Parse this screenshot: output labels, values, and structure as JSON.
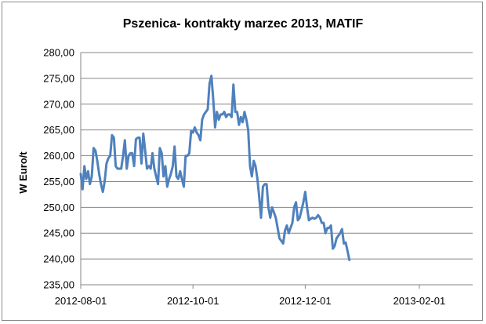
{
  "chart_data": {
    "type": "line",
    "title": "Pszenica- kontrakty marzec 2013, MATIF",
    "xlabel": "",
    "ylabel": "W Euro/t",
    "ylim": [
      235,
      280
    ],
    "y_ticks": [
      "235,00",
      "240,00",
      "245,00",
      "250,00",
      "255,00",
      "260,00",
      "265,00",
      "270,00",
      "275,00",
      "280,00"
    ],
    "x_ticks": [
      "2012-08-01",
      "2012-10-01",
      "2012-12-01",
      "2013-02-01"
    ],
    "x_tick_days": [
      0,
      61,
      122,
      184
    ],
    "x_range_days": [
      0,
      213
    ],
    "grid": "horizontal",
    "legend": "none",
    "color": "#4F81BD",
    "series": [
      {
        "values": [
          [
            0,
            256.5
          ],
          [
            1,
            253.5
          ],
          [
            2,
            258
          ],
          [
            3,
            255.5
          ],
          [
            4,
            257
          ],
          [
            5,
            254.5
          ],
          [
            6,
            256
          ],
          [
            7,
            261.5
          ],
          [
            8,
            261
          ],
          [
            9,
            259
          ],
          [
            10,
            256.5
          ],
          [
            11,
            254.5
          ],
          [
            12,
            253
          ],
          [
            13,
            255
          ],
          [
            14,
            258.5
          ],
          [
            15,
            259.5
          ],
          [
            16,
            260
          ],
          [
            17,
            264
          ],
          [
            18,
            263.5
          ],
          [
            19,
            258
          ],
          [
            20,
            257.5
          ],
          [
            21,
            257.5
          ],
          [
            22,
            257.5
          ],
          [
            23,
            260
          ],
          [
            24,
            263
          ],
          [
            25,
            257.5
          ],
          [
            26,
            260
          ],
          [
            27,
            260.5
          ],
          [
            28,
            260.5
          ],
          [
            29,
            258
          ],
          [
            30,
            263.2
          ],
          [
            31,
            263.5
          ],
          [
            32,
            263.5
          ],
          [
            33,
            258.5
          ],
          [
            34,
            264.3
          ],
          [
            35,
            261
          ],
          [
            36,
            257.5
          ],
          [
            37,
            258
          ],
          [
            38,
            257.5
          ],
          [
            39,
            260.5
          ],
          [
            40,
            257.5
          ],
          [
            41,
            256
          ],
          [
            42,
            254.5
          ],
          [
            43,
            261.5
          ],
          [
            44,
            260.5
          ],
          [
            45,
            256
          ],
          [
            46,
            258
          ],
          [
            47,
            254
          ],
          [
            48,
            255.5
          ],
          [
            49,
            256.5
          ],
          [
            50,
            258
          ],
          [
            51,
            261.8
          ],
          [
            52,
            256
          ],
          [
            53,
            255.5
          ],
          [
            54,
            257
          ],
          [
            55,
            255.5
          ],
          [
            56,
            254
          ],
          [
            57,
            260
          ],
          [
            58,
            260
          ],
          [
            59,
            260.5
          ],
          [
            60,
            264.8
          ],
          [
            61,
            264.5
          ],
          [
            62,
            265.5
          ],
          [
            63,
            264.5
          ],
          [
            64,
            264
          ],
          [
            65,
            263
          ],
          [
            66,
            267
          ],
          [
            67,
            268
          ],
          [
            68,
            268.5
          ],
          [
            69,
            269
          ],
          [
            70,
            274
          ],
          [
            71,
            275.5
          ],
          [
            72,
            271
          ],
          [
            73,
            265.5
          ],
          [
            74,
            268.5
          ],
          [
            75,
            267
          ],
          [
            76,
            268
          ],
          [
            77,
            268
          ],
          [
            78,
            268.5
          ],
          [
            79,
            267.5
          ],
          [
            80,
            268
          ],
          [
            81,
            268
          ],
          [
            82,
            267.5
          ],
          [
            83,
            273.8
          ],
          [
            84,
            268.5
          ],
          [
            85,
            268.5
          ],
          [
            86,
            266
          ],
          [
            87,
            267.5
          ],
          [
            88,
            266.5
          ],
          [
            89,
            268.5
          ],
          [
            90,
            267
          ],
          [
            91,
            265
          ],
          [
            92,
            258
          ],
          [
            93,
            256
          ],
          [
            94,
            259
          ],
          [
            95,
            258
          ],
          [
            96,
            255.5
          ],
          [
            97,
            252
          ],
          [
            98,
            248
          ],
          [
            99,
            254
          ],
          [
            100,
            254.5
          ],
          [
            101,
            254.5
          ],
          [
            102,
            250
          ],
          [
            103,
            248
          ],
          [
            104,
            250
          ],
          [
            105,
            249
          ],
          [
            106,
            248
          ],
          [
            107,
            246
          ],
          [
            108,
            244
          ],
          [
            109,
            243.5
          ],
          [
            110,
            243
          ],
          [
            111,
            245.5
          ],
          [
            112,
            246.5
          ],
          [
            113,
            245
          ],
          [
            114,
            246
          ],
          [
            115,
            247
          ],
          [
            116,
            250
          ],
          [
            117,
            251
          ],
          [
            118,
            247.5
          ],
          [
            119,
            248
          ],
          [
            120,
            249.5
          ],
          [
            121,
            251
          ],
          [
            122,
            253
          ],
          [
            123,
            250
          ],
          [
            124,
            247.5
          ],
          [
            125,
            247.8
          ],
          [
            126,
            248
          ],
          [
            127,
            247.8
          ],
          [
            128,
            248
          ],
          [
            129,
            248.5
          ],
          [
            130,
            248
          ],
          [
            131,
            247
          ],
          [
            132,
            247
          ],
          [
            133,
            245
          ],
          [
            134,
            246
          ],
          [
            135,
            246
          ],
          [
            136,
            246.5
          ],
          [
            137,
            242
          ],
          [
            138,
            242.5
          ],
          [
            139,
            244
          ],
          [
            140,
            244.5
          ],
          [
            141,
            245
          ],
          [
            142,
            245.8
          ],
          [
            143,
            243
          ],
          [
            144,
            243.2
          ],
          [
            145,
            241.5
          ],
          [
            146,
            239.8
          ]
        ]
      }
    ]
  }
}
